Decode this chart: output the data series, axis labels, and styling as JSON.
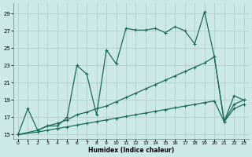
{
  "bg_color": "#cde8e8",
  "grid_color": "#aacccc",
  "line_color": "#1a6b5a",
  "xlabel": "Humidex (Indice chaleur)",
  "xlim": [
    -0.5,
    23.5
  ],
  "ylim": [
    14.5,
    30.2
  ],
  "xticks": [
    0,
    1,
    2,
    3,
    4,
    5,
    6,
    7,
    8,
    9,
    10,
    11,
    12,
    13,
    14,
    15,
    16,
    17,
    18,
    19,
    20,
    21,
    22,
    23
  ],
  "yticks": [
    15,
    17,
    19,
    21,
    23,
    25,
    27,
    29
  ],
  "line1_x": [
    0,
    1,
    2,
    3,
    4,
    5,
    6,
    7,
    8,
    9,
    10,
    11,
    12,
    13,
    14,
    15,
    16,
    17,
    18,
    19,
    20,
    21,
    22,
    23
  ],
  "line1_y": [
    15.0,
    18.0,
    15.5,
    16.0,
    16.0,
    17.0,
    23.0,
    22.0,
    17.3,
    24.8,
    23.2,
    27.3,
    27.1,
    27.1,
    27.3,
    26.8,
    27.5,
    27.0,
    25.5,
    29.2,
    24.0,
    16.5,
    19.5,
    19.0
  ],
  "line2_x": [
    0,
    2,
    3,
    4,
    5,
    6,
    7,
    8,
    9,
    10,
    11,
    12,
    13,
    14,
    15,
    16,
    17,
    18,
    19,
    20,
    21,
    22,
    23
  ],
  "line2_y": [
    15.0,
    15.5,
    16.0,
    16.3,
    16.7,
    17.3,
    17.6,
    18.0,
    18.3,
    18.8,
    19.3,
    19.8,
    20.3,
    20.8,
    21.3,
    21.8,
    22.3,
    22.8,
    23.3,
    24.0,
    16.5,
    18.5,
    19.0
  ],
  "line3_x": [
    0,
    2,
    3,
    4,
    5,
    6,
    7,
    8,
    9,
    10,
    11,
    12,
    13,
    14,
    15,
    16,
    17,
    18,
    19,
    20,
    21,
    22,
    23
  ],
  "line3_y": [
    15.0,
    15.3,
    15.5,
    15.7,
    15.9,
    16.1,
    16.3,
    16.5,
    16.7,
    16.9,
    17.1,
    17.3,
    17.5,
    17.7,
    17.9,
    18.1,
    18.3,
    18.5,
    18.7,
    18.9,
    16.5,
    18.0,
    18.5
  ]
}
